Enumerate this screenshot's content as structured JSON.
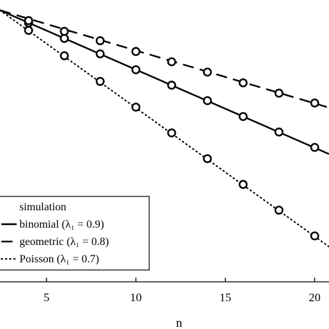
{
  "chart_data": {
    "type": "line",
    "xlabel": "n",
    "ylabel": "",
    "xlim": [
      2.4,
      20.8
    ],
    "x_ticks": [
      "5",
      "10",
      "15",
      "20"
    ],
    "y_log_scale": true,
    "grid": false,
    "legend_placement": "bottom-left",
    "legend": {
      "header": "simulation",
      "entries": [
        "binomial (λ₁ = 0.9)",
        "geometric (λ₁ = 0.8)",
        "Poisson (λ₁ = 0.7)"
      ]
    },
    "series": [
      {
        "name": "binomial (λ₁ = 0.9)",
        "line_style": "solid",
        "x_line": [
          2.4,
          20.8
        ],
        "y_line": [
          0.0,
          -3.07
        ],
        "x_sim": [
          4,
          6,
          8,
          10,
          12,
          14,
          16,
          18,
          20
        ],
        "y_sim": [
          -0.27,
          -0.6,
          -0.93,
          -1.27,
          -1.6,
          -1.93,
          -2.27,
          -2.6,
          -2.93
        ]
      },
      {
        "name": "geometric (λ₁ = 0.8)",
        "line_style": "dashed",
        "x_line": [
          2.4,
          20.8
        ],
        "y_line": [
          0.0,
          -2.08
        ],
        "x_sim": [
          4,
          6,
          8,
          10,
          12,
          14,
          16,
          18,
          20
        ],
        "y_sim": [
          -0.22,
          -0.45,
          -0.65,
          -0.88,
          -1.1,
          -1.32,
          -1.55,
          -1.77,
          -1.98
        ]
      },
      {
        "name": "Poisson (λ₁ = 0.7)",
        "line_style": "dotted",
        "x_line": [
          2.4,
          20.8
        ],
        "y_line": [
          0.0,
          -5.05
        ],
        "x_sim": [
          4,
          6,
          8,
          10,
          12,
          14,
          16,
          18,
          20
        ],
        "y_sim": [
          -0.43,
          -0.97,
          -1.52,
          -2.07,
          -2.62,
          -3.17,
          -3.72,
          -4.27,
          -4.82
        ]
      }
    ]
  }
}
